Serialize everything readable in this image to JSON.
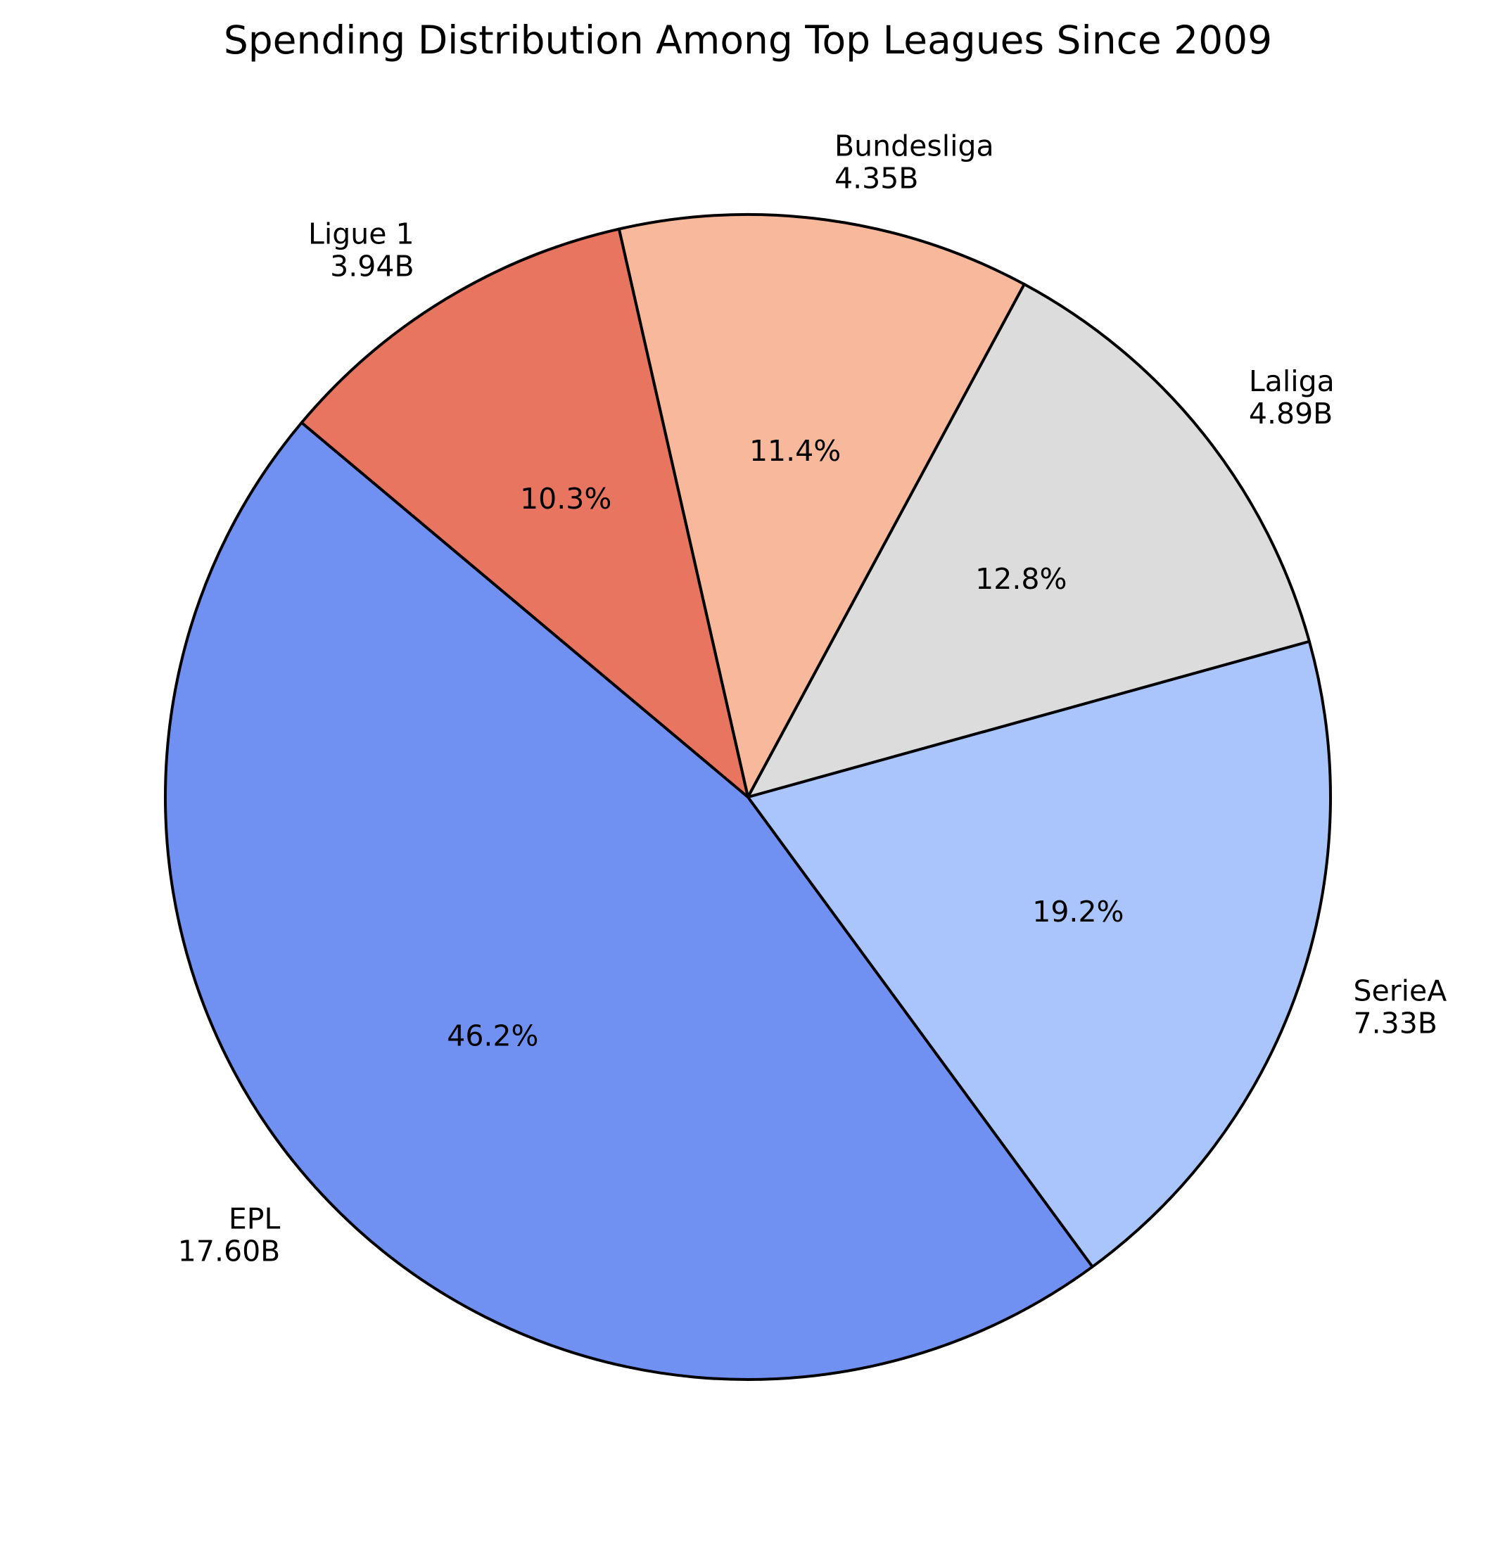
{
  "chart_data": {
    "type": "pie",
    "title": "Spending Distribution Among Top Leagues Since 2009",
    "slices": [
      {
        "label": "EPL",
        "value": 17.6,
        "value_label": "17.60B",
        "percent_label": "46.2%",
        "color": "#7091f2"
      },
      {
        "label": "SerieA",
        "value": 7.33,
        "value_label": "7.33B",
        "percent_label": "19.2%",
        "color": "#a9c5fc"
      },
      {
        "label": "Laliga",
        "value": 4.89,
        "value_label": "4.89B",
        "percent_label": "12.8%",
        "color": "#dcdcdc"
      },
      {
        "label": "Bundesliga",
        "value": 4.35,
        "value_label": "4.35B",
        "percent_label": "11.4%",
        "color": "#f7b89c"
      },
      {
        "label": "Ligue 1",
        "value": 3.94,
        "value_label": "3.94B",
        "percent_label": "10.3%",
        "color": "#e8755f"
      }
    ],
    "start_angle_deg": 140,
    "direction": "counterclockwise",
    "unit": "B"
  }
}
